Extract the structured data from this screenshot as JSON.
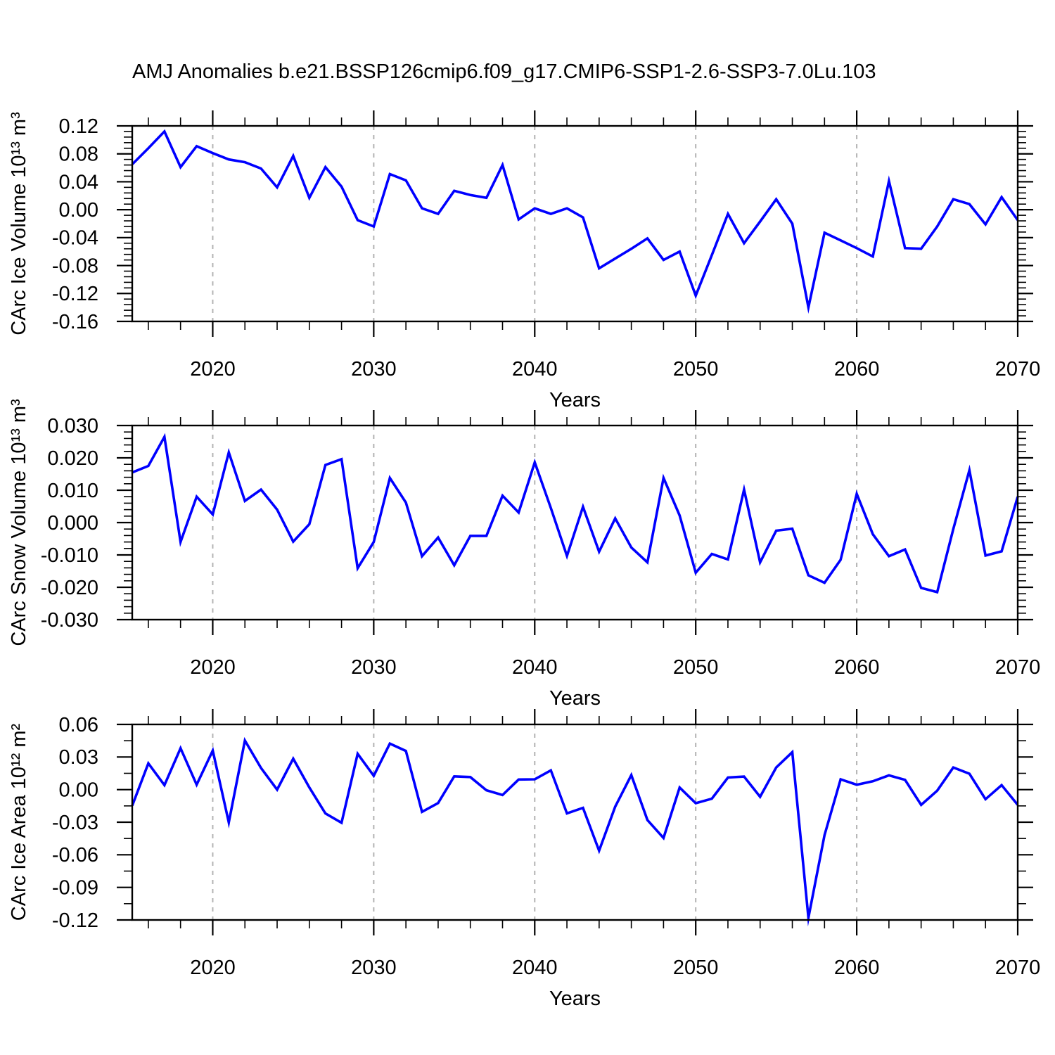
{
  "title": "AMJ Anomalies b.e21.BSSP126cmip6.f09_g17.CMIP6-SSP1-2.6-SSP3-7.0Lu.103",
  "colors": {
    "line": "#0000ff",
    "grid": "#b3b3b3",
    "axis": "#000000",
    "background": "#ffffff"
  },
  "years": [
    2015,
    2016,
    2017,
    2018,
    2019,
    2020,
    2021,
    2022,
    2023,
    2024,
    2025,
    2026,
    2027,
    2028,
    2029,
    2030,
    2031,
    2032,
    2033,
    2034,
    2035,
    2036,
    2037,
    2038,
    2039,
    2040,
    2041,
    2042,
    2043,
    2044,
    2045,
    2046,
    2047,
    2048,
    2049,
    2050,
    2051,
    2052,
    2053,
    2054,
    2055,
    2056,
    2057,
    2058,
    2059,
    2060,
    2061,
    2062,
    2063,
    2064,
    2065,
    2066,
    2067,
    2068,
    2069,
    2070
  ],
  "chart_data": [
    {
      "type": "line",
      "name": "carc-ice-volume",
      "ylabel": "CArc Ice Volume 10¹³ m³",
      "xlabel": "Years",
      "xlim": [
        2015,
        2070
      ],
      "ylim": [
        -0.16,
        0.12
      ],
      "xticks": [
        2020,
        2030,
        2040,
        2050,
        2060,
        2070
      ],
      "xminor_step": 2,
      "grid_x": [
        2020,
        2030,
        2040,
        2050,
        2060
      ],
      "ytick_step": 0.04,
      "ytick_decimals": 2,
      "yminor_subdiv": 5,
      "legend_position": "none",
      "grid": "vertical-dashed",
      "values": [
        0.065,
        0.088,
        0.112,
        0.061,
        0.091,
        0.081,
        0.072,
        0.068,
        0.059,
        0.032,
        0.077,
        0.017,
        0.061,
        0.033,
        -0.015,
        -0.024,
        0.051,
        0.042,
        0.002,
        -0.006,
        0.027,
        0.021,
        0.017,
        0.064,
        -0.014,
        0.002,
        -0.006,
        0.002,
        -0.011,
        -0.084,
        -0.07,
        -0.056,
        -0.041,
        -0.072,
        -0.06,
        -0.123,
        -0.065,
        -0.006,
        -0.048,
        -0.017,
        0.015,
        -0.02,
        -0.14,
        -0.033,
        -0.044,
        -0.055,
        -0.067,
        0.041,
        -0.055,
        -0.056,
        -0.024,
        0.015,
        0.008,
        -0.021,
        0.018,
        -0.015
      ]
    },
    {
      "type": "line",
      "name": "carc-snow-volume",
      "ylabel": "CArc Snow Volume 10¹³ m³",
      "xlabel": "Years",
      "xlim": [
        2015,
        2070
      ],
      "ylim": [
        -0.03,
        0.03
      ],
      "xticks": [
        2020,
        2030,
        2040,
        2050,
        2060,
        2070
      ],
      "xminor_step": 2,
      "grid_x": [
        2020,
        2030,
        2040,
        2050,
        2060
      ],
      "ytick_step": 0.01,
      "ytick_decimals": 3,
      "yminor_subdiv": 5,
      "legend_position": "none",
      "grid": "vertical-dashed",
      "values": [
        0.0155,
        0.0175,
        0.0265,
        -0.006,
        0.008,
        0.0025,
        0.0217,
        0.0067,
        0.0102,
        0.004,
        -0.0059,
        -0.0005,
        0.0178,
        0.0196,
        -0.0141,
        -0.006,
        0.0138,
        0.0062,
        -0.0104,
        -0.0046,
        -0.0132,
        -0.0041,
        -0.0041,
        0.0083,
        0.0031,
        0.0186,
        0.0045,
        -0.0103,
        0.0049,
        -0.009,
        0.0013,
        -0.0077,
        -0.0123,
        0.0138,
        0.0022,
        -0.0155,
        -0.0097,
        -0.0114,
        0.0102,
        -0.0123,
        -0.0025,
        -0.0019,
        -0.0163,
        -0.0186,
        -0.0115,
        0.0089,
        -0.0036,
        -0.0104,
        -0.0083,
        -0.0202,
        -0.0215,
        -0.002,
        0.0162,
        -0.0102,
        -0.0089,
        0.008
      ]
    },
    {
      "type": "line",
      "name": "carc-ice-area",
      "ylabel": "CArc Ice Area 10¹² m²",
      "xlabel": "Years",
      "xlim": [
        2015,
        2070
      ],
      "ylim": [
        -0.12,
        0.06
      ],
      "xticks": [
        2020,
        2030,
        2040,
        2050,
        2060,
        2070
      ],
      "xminor_step": 2,
      "grid_x": [
        2020,
        2030,
        2040,
        2050,
        2060
      ],
      "ytick_step": 0.03,
      "ytick_decimals": 2,
      "yminor_subdiv": 2,
      "legend_position": "none",
      "grid": "vertical-dashed",
      "values": [
        -0.0148,
        0.0242,
        0.0041,
        0.0381,
        0.0045,
        0.036,
        -0.0302,
        0.0452,
        0.0199,
        0.0,
        0.0285,
        0.002,
        -0.022,
        -0.0305,
        0.033,
        0.0127,
        0.0424,
        0.0356,
        -0.0205,
        -0.0124,
        0.0122,
        0.0116,
        -0.0006,
        -0.005,
        0.0093,
        0.0095,
        0.0177,
        -0.0219,
        -0.0168,
        -0.0562,
        -0.0157,
        0.0134,
        -0.028,
        -0.0445,
        0.0019,
        -0.0125,
        -0.0084,
        0.0111,
        0.012,
        -0.0066,
        0.0204,
        0.0345,
        -0.118,
        -0.0419,
        0.0094,
        0.0045,
        0.0077,
        0.0131,
        0.009,
        -0.0141,
        -0.001,
        0.0204,
        0.0146,
        -0.0088,
        0.0041,
        -0.0141
      ]
    }
  ]
}
